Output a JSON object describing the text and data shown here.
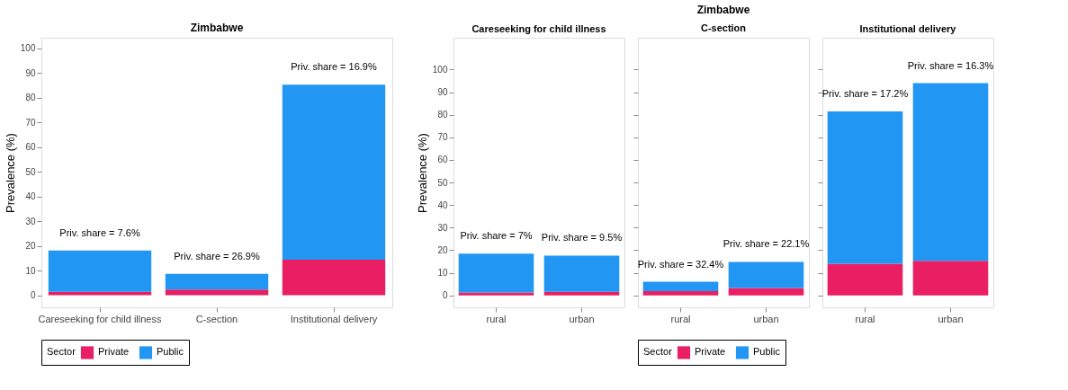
{
  "chart_data": [
    {
      "type": "bar",
      "title": "Zimbabwe",
      "ylabel": "Prevalence (%)",
      "legend_title": "Sector",
      "categories": [
        "Careseeking for child illness",
        "C-section",
        "Institutional delivery"
      ],
      "stacked": true,
      "ylim": [
        -4.9,
        104.3
      ],
      "yticks": [
        0,
        10,
        20,
        30,
        40,
        50,
        60,
        70,
        80,
        90,
        100
      ],
      "grid": false,
      "legend": "bottom",
      "series": [
        {
          "name": "Private",
          "color": "#e91e63",
          "values": [
            1.4,
            2.3,
            14.4
          ]
        },
        {
          "name": "Public",
          "color": "#2196f3",
          "values": [
            16.7,
            6.4,
            70.9
          ]
        }
      ],
      "annotations": [
        "Priv. share = 7.6%",
        "Priv. share = 26.9%",
        "Priv. share = 16.9%"
      ]
    },
    {
      "type": "bar",
      "subtitle": "Careseeking for child illness",
      "ylabel": "Prevalence (%)",
      "categories": [
        "rural",
        "urban"
      ],
      "stacked": true,
      "ylim": [
        -5.3,
        114.1
      ],
      "yticks": [
        0,
        10,
        20,
        30,
        40,
        50,
        60,
        70,
        80,
        90,
        100
      ],
      "grid": false,
      "legend": false,
      "series": [
        {
          "color": "#e91e63",
          "values": [
            1.3,
            1.6
          ]
        },
        {
          "color": "#2196f3",
          "values": [
            17.2,
            16.0
          ]
        }
      ],
      "annotations": [
        "Priv. share = 7%",
        "Priv. share = 9.5%"
      ]
    },
    {
      "type": "bar",
      "title": "Zimbabwe",
      "subtitle": "C-section",
      "legend_title": "Sector",
      "categories": [
        "rural",
        "urban"
      ],
      "stacked": true,
      "ylim": [
        -5.3,
        114.1
      ],
      "yticks": [
        0,
        10,
        20,
        30,
        40,
        50,
        60,
        70,
        80,
        90,
        100
      ],
      "grid": false,
      "legend": "bottom",
      "tick_labels": "x",
      "series": [
        {
          "name": "Private",
          "color": "#e91e63",
          "values": [
            1.9,
            3.3
          ]
        },
        {
          "name": "Public",
          "color": "#2196f3",
          "values": [
            4.1,
            11.5
          ]
        }
      ],
      "annotations": [
        "Priv. share = 32.4%",
        "Priv. share = 22.1%"
      ]
    },
    {
      "type": "bar",
      "subtitle": "Institutional delivery",
      "categories": [
        "rural",
        "urban"
      ],
      "stacked": true,
      "ylim": [
        -5.3,
        114.1
      ],
      "yticks": [
        0,
        10,
        20,
        30,
        40,
        50,
        60,
        70,
        80,
        90,
        100
      ],
      "grid": false,
      "legend": false,
      "tick_labels": "x",
      "series": [
        {
          "color": "#e91e63",
          "values": [
            14.0,
            15.3
          ]
        },
        {
          "color": "#2196f3",
          "values": [
            67.5,
            78.7
          ]
        }
      ],
      "annotations": [
        "Priv. share = 17.2%",
        "Priv. share = 16.3%"
      ]
    }
  ]
}
